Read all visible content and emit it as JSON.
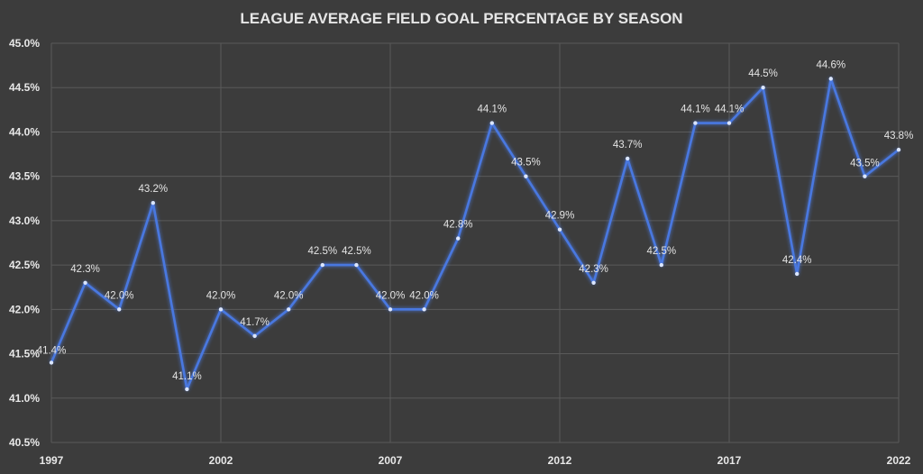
{
  "chart_data": {
    "type": "line",
    "title": "LEAGUE AVERAGE FIELD GOAL PERCENTAGE BY SEASON",
    "xlabel": "",
    "ylabel": "",
    "xlim": [
      1997,
      2022
    ],
    "ylim": [
      40.5,
      45.0
    ],
    "x_tick_labels": [
      "1997",
      "2002",
      "2007",
      "2012",
      "2017",
      "2022"
    ],
    "y_tick_labels": [
      "40.5%",
      "41.0%",
      "41.5%",
      "42.0%",
      "42.5%",
      "43.0%",
      "43.5%",
      "44.0%",
      "44.5%",
      "45.0%"
    ],
    "grid": true,
    "legend": "none",
    "colors": {
      "background": "#3c3c3c",
      "line": "#4a78e0",
      "glow": "#5d8cff",
      "grid": "#5a5a5a",
      "text": "#e6e6e6"
    },
    "x": [
      1997,
      1998,
      1999,
      2000,
      2001,
      2002,
      2003,
      2004,
      2005,
      2006,
      2007,
      2008,
      2009,
      2010,
      2011,
      2012,
      2013,
      2014,
      2015,
      2016,
      2017,
      2018,
      2019,
      2020,
      2021,
      2022
    ],
    "values": [
      41.4,
      42.3,
      42.0,
      43.2,
      41.1,
      42.0,
      41.7,
      42.0,
      42.5,
      42.5,
      42.0,
      42.0,
      42.8,
      44.1,
      43.5,
      42.9,
      42.3,
      43.7,
      42.5,
      44.1,
      44.1,
      44.5,
      42.4,
      44.6,
      43.5,
      43.8
    ],
    "data_labels": [
      "41.4%",
      "42.3%",
      "42.0%",
      "43.2%",
      "41.1%",
      "42.0%",
      "41.7%",
      "42.0%",
      "42.5%",
      "42.5%",
      "42.0%",
      "42.0%",
      "42.8%",
      "44.1%",
      "43.5%",
      "42.9%",
      "42.3%",
      "43.7%",
      "42.5%",
      "44.1%",
      "44.1%",
      "44.5%",
      "42.4%",
      "44.6%",
      "43.5%",
      "43.8%"
    ]
  }
}
